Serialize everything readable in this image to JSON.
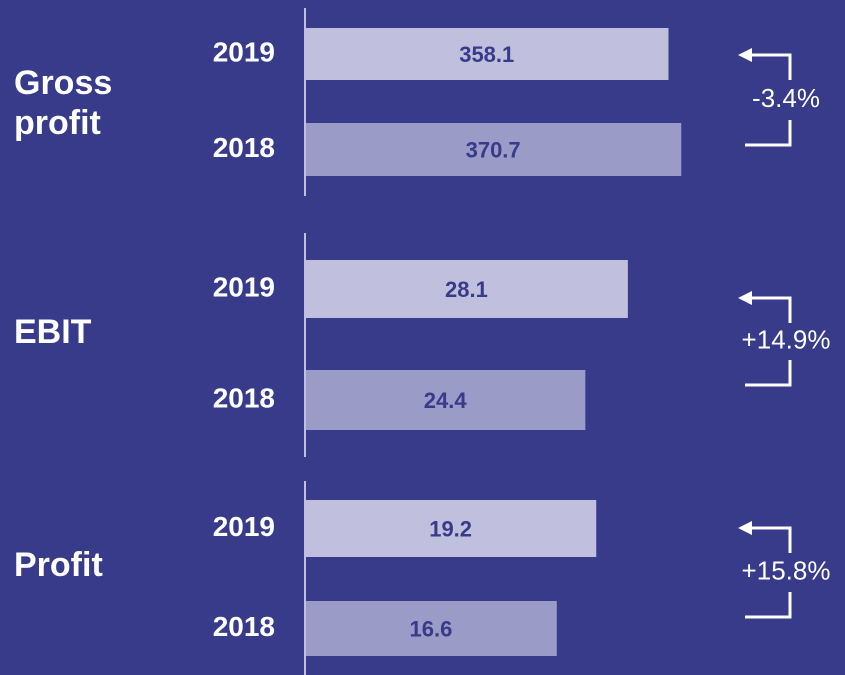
{
  "chart_data": [
    {
      "type": "bar",
      "orientation": "horizontal",
      "title": "Gross profit",
      "categories": [
        "2019",
        "2018"
      ],
      "values": [
        358.1,
        370.7
      ],
      "colors": [
        "#c0c0de",
        "#9b9bc8"
      ],
      "xlim": [
        0,
        532
      ],
      "annotation": "-3.4%"
    },
    {
      "type": "bar",
      "orientation": "horizontal",
      "title": "EBIT",
      "categories": [
        "2019",
        "2018"
      ],
      "values": [
        28.1,
        24.4
      ],
      "colors": [
        "#c0c0de",
        "#9b9bc8"
      ],
      "xlim": [
        0,
        47
      ],
      "annotation": "+14.9%"
    },
    {
      "type": "bar",
      "orientation": "horizontal",
      "title": "Profit",
      "categories": [
        "2019",
        "2018"
      ],
      "values": [
        19.2,
        16.6
      ],
      "colors": [
        "#c0c0de",
        "#9b9bc8"
      ],
      "xlim": [
        0,
        35.6
      ],
      "annotation": "+15.8%"
    }
  ]
}
